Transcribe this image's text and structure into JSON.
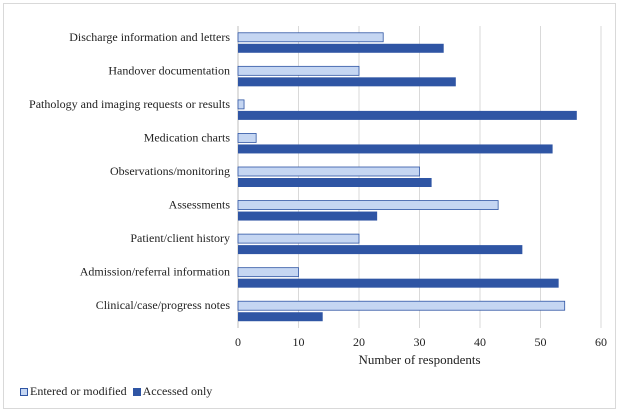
{
  "chart_data": {
    "type": "bar",
    "orientation": "horizontal",
    "categories": [
      "Discharge information and letters",
      "Handover documentation",
      "Pathology and imaging requests or results",
      "Medication charts",
      "Observations/monitoring",
      "Assessments",
      "Patient/client history",
      "Admission/referral information",
      "Clinical/case/progress notes"
    ],
    "series": [
      {
        "name": "Entered or modified",
        "values": [
          24,
          20,
          1,
          3,
          30,
          43,
          20,
          10,
          54
        ],
        "color": "#c5d6f2",
        "stroke": "#2f55a4"
      },
      {
        "name": "Accessed only",
        "values": [
          34,
          36,
          56,
          52,
          32,
          23,
          47,
          53,
          14
        ],
        "color": "#2f55a4",
        "stroke": "#2f55a4"
      }
    ],
    "xlabel": "Number of respondents",
    "ylabel": "",
    "xlim": [
      0,
      60
    ],
    "xticks": [
      "0",
      "10",
      "20",
      "30",
      "40",
      "50",
      "60"
    ],
    "grid": true,
    "legend": "bottom-left"
  }
}
